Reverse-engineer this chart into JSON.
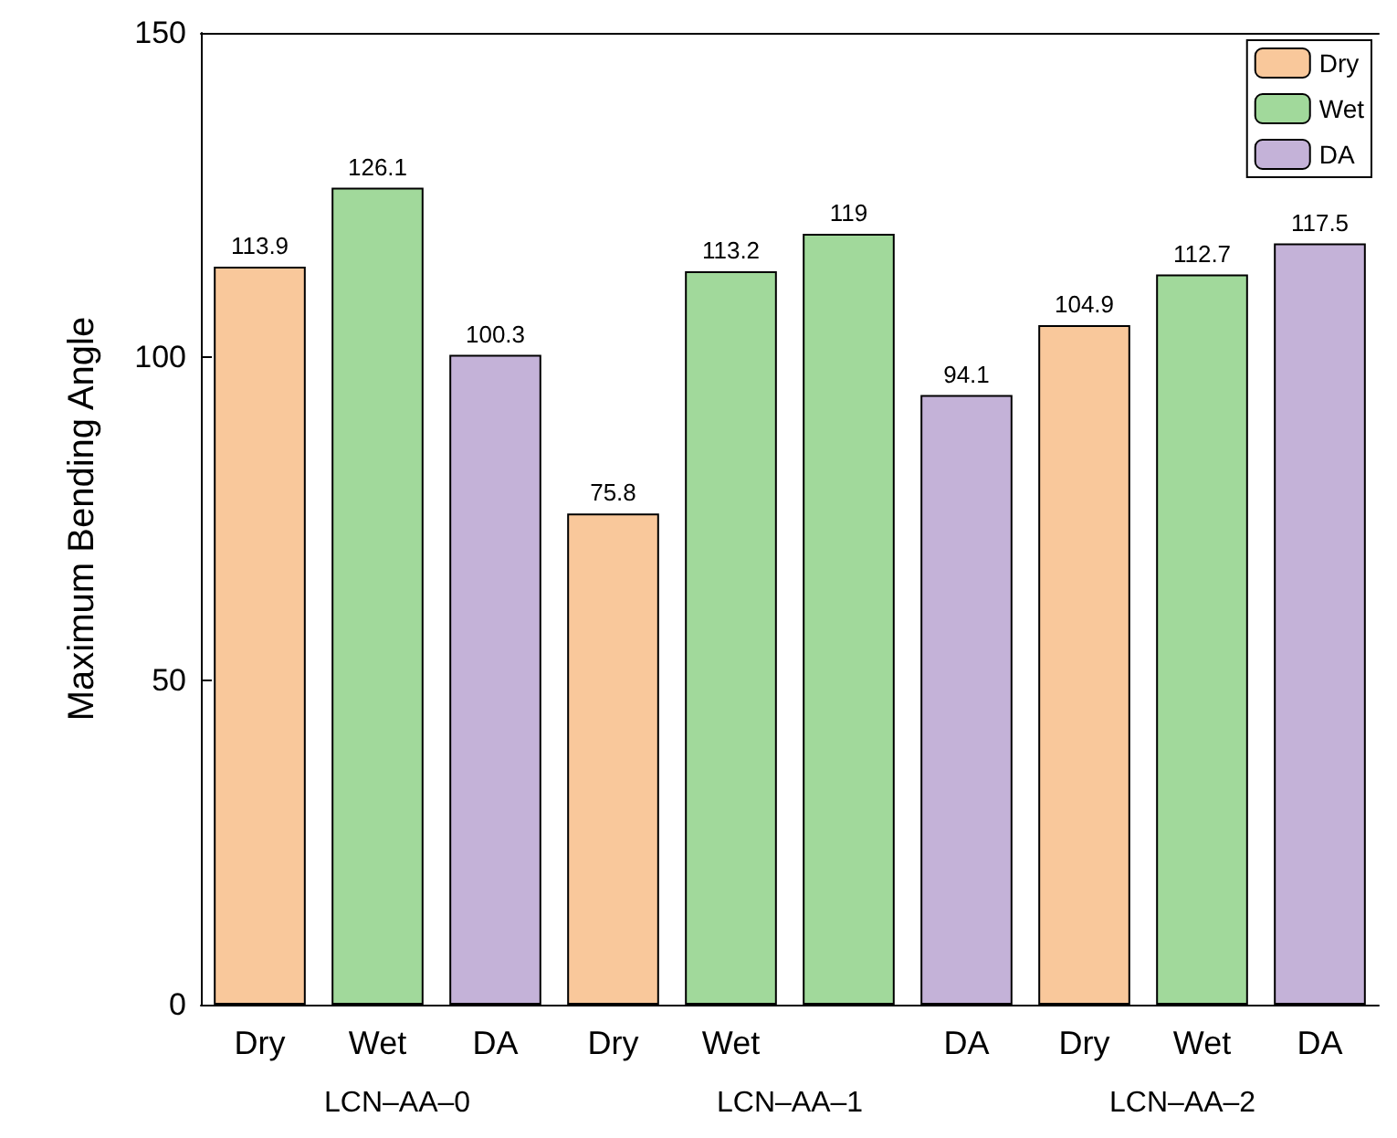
{
  "chart_data": {
    "type": "bar",
    "ylabel": "Maximum Bending Angle",
    "categories": [
      "Dry",
      "Wet",
      "DA",
      "Dry",
      "Wet",
      null,
      "DA",
      "Dry",
      "Wet",
      "DA"
    ],
    "series": [
      {
        "name": "Dry",
        "color": "#f9c89b",
        "values": [
          113.9,
          null,
          null,
          75.8,
          null,
          null,
          null,
          104.9,
          null,
          null
        ]
      },
      {
        "name": "Wet",
        "color": "#a1d99b",
        "values": [
          null,
          126.1,
          null,
          null,
          113.2,
          119,
          null,
          null,
          112.7,
          null
        ]
      },
      {
        "name": "DA",
        "color": "#c4b2d8",
        "values": [
          null,
          null,
          100.3,
          null,
          null,
          null,
          94.1,
          null,
          null,
          117.5
        ]
      }
    ],
    "stacked": true,
    "data_labels": true,
    "ylim": [
      0,
      150
    ],
    "yticks": [
      0,
      50,
      100,
      150
    ],
    "grid": false,
    "legend": "top right",
    "annotations": [
      "LCN–AA–0",
      "LCN–AA–1",
      "LCN–AA–2"
    ]
  }
}
